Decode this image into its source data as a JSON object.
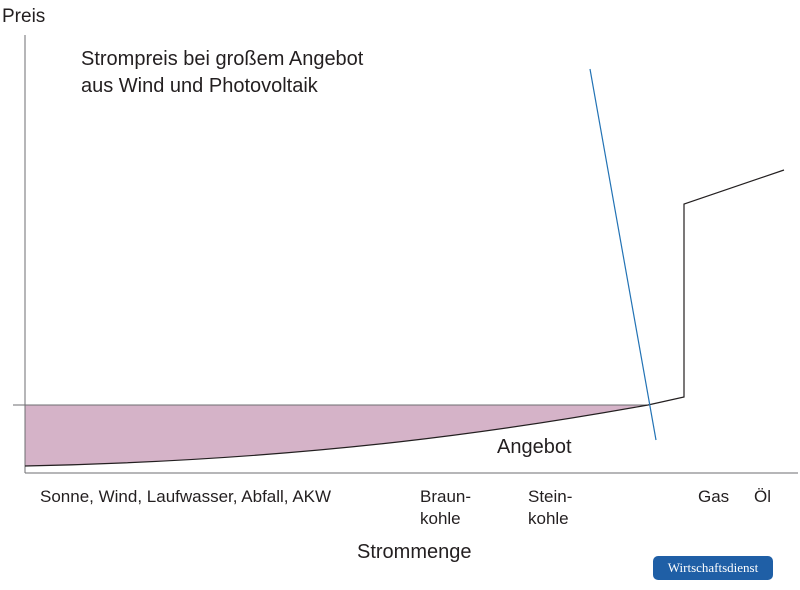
{
  "title_lines": [
    "Strompreis bei großem Angebot",
    "aus Wind und Photovoltaik"
  ],
  "y_axis_label": "Preis",
  "x_axis_label": "Strommenge",
  "supply_label": "Angebot",
  "x_categories": [
    {
      "lines": [
        "Sonne, Wind, Laufwasser, Abfall, AKW"
      ]
    },
    {
      "lines": [
        "Braun-",
        "kohle"
      ]
    },
    {
      "lines": [
        "Stein-",
        "kohle"
      ]
    },
    {
      "lines": [
        "Gas"
      ]
    },
    {
      "lines": [
        "Öl"
      ]
    }
  ],
  "badge": "Wirtschaftsdienst",
  "colors": {
    "axis": "#6d6e71",
    "supply_curve": "#231f20",
    "demand_curve": "#2272b4",
    "negative_price_area": "#d5b3c8",
    "badge_bg": "#1f5fa6"
  }
}
